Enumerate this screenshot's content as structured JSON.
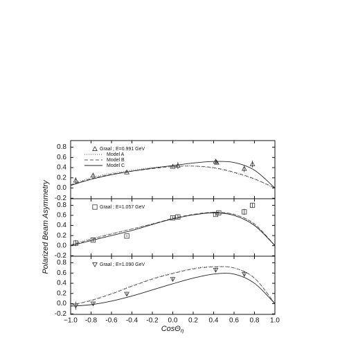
{
  "chart_data": [
    {
      "type": "line",
      "x": [
        -1,
        -0.8,
        -0.6,
        -0.4,
        -0.2,
        0,
        0.2,
        0.4,
        0.6,
        0.8,
        1
      ],
      "series": [
        {
          "name": "Model A",
          "style": "dotted",
          "color": "#555555",
          "values": [
            0.07,
            0.2,
            0.29,
            0.35,
            0.4,
            0.43,
            0.43,
            0.39,
            0.3,
            0.17,
            0
          ]
        },
        {
          "name": "Model B",
          "style": "dashed",
          "color": "#555555",
          "values": [
            0.06,
            0.18,
            0.27,
            0.33,
            0.38,
            0.42,
            0.43,
            0.4,
            0.31,
            0.18,
            0
          ]
        },
        {
          "name": "Model C",
          "style": "solid",
          "color": "#222222",
          "values": [
            0.05,
            0.17,
            0.26,
            0.33,
            0.39,
            0.44,
            0.49,
            0.52,
            0.5,
            0.35,
            0
          ]
        }
      ],
      "points": {
        "name": "Graal ; E=0.991 GeV",
        "marker": "triangle",
        "color": "#333333",
        "x": [
          -0.95,
          -0.78,
          -0.45,
          0.0,
          0.05,
          0.42,
          0.43,
          0.7,
          0.78
        ],
        "values": [
          0.15,
          0.25,
          0.31,
          0.42,
          0.44,
          0.52,
          0.5,
          0.38,
          0.47
        ],
        "errors": [
          0.06,
          0.02,
          0.02,
          0.03,
          0.07,
          0.04,
          0.04,
          0.07,
          0.07
        ]
      },
      "ylim": [
        -0.21,
        0.93
      ],
      "yticks": [
        -0.2,
        {
          "value": 0,
          "label": "0.0"
        },
        0.2,
        0.4,
        0.6,
        0.8
      ]
    },
    {
      "type": "line",
      "y_label": "Polarized Beam Asymmetry",
      "x": [
        -1,
        -0.8,
        -0.6,
        -0.4,
        -0.2,
        0,
        0.2,
        0.4,
        0.6,
        0.8,
        1
      ],
      "series": [
        {
          "style": "dotted",
          "color": "#555555",
          "values": [
            0.02,
            0.14,
            0.24,
            0.33,
            0.43,
            0.53,
            0.61,
            0.66,
            0.62,
            0.42,
            0
          ]
        },
        {
          "style": "dashed",
          "color": "#555555",
          "values": [
            0.01,
            0.12,
            0.23,
            0.33,
            0.43,
            0.54,
            0.62,
            0.66,
            0.62,
            0.43,
            0
          ]
        },
        {
          "style": "solid",
          "color": "#222222",
          "values": [
            0.0,
            0.1,
            0.2,
            0.3,
            0.42,
            0.53,
            0.61,
            0.65,
            0.6,
            0.4,
            0
          ]
        }
      ],
      "points": {
        "name": "Graal ; E=1.057 GeV",
        "marker": "square",
        "color": "#333333",
        "x": [
          -0.95,
          -0.78,
          -0.45,
          0.0,
          0.05,
          0.42,
          0.45,
          0.7,
          0.78
        ],
        "values": [
          0.05,
          0.11,
          0.19,
          0.55,
          0.57,
          0.62,
          0.65,
          0.67,
          0.8
        ],
        "errors": [
          0.06,
          0.03,
          0.02,
          0.03,
          0.05,
          0.03,
          0.03,
          0.06,
          0.05
        ]
      },
      "ylim": [
        -0.21,
        0.93
      ],
      "yticks": [
        -0.2,
        {
          "value": 0,
          "label": "0.0"
        },
        0.2,
        0.4,
        0.6,
        0.8
      ]
    },
    {
      "type": "line",
      "x_label": "CosΘ",
      "x_label_sub": "η",
      "x": [
        -1,
        -0.8,
        -0.6,
        -0.4,
        -0.2,
        0,
        0.2,
        0.4,
        0.6,
        0.8,
        1
      ],
      "series": [
        {
          "style": "dotted",
          "color": "#555555",
          "values": [
            -0.03,
            0.07,
            0.2,
            0.35,
            0.49,
            0.6,
            0.69,
            0.73,
            0.7,
            0.5,
            0
          ]
        },
        {
          "style": "dashed",
          "color": "#555555",
          "values": [
            -0.03,
            0.06,
            0.19,
            0.34,
            0.48,
            0.59,
            0.68,
            0.72,
            0.7,
            0.5,
            0
          ]
        },
        {
          "style": "solid",
          "color": "#222222",
          "values": [
            -0.05,
            -0.02,
            0.05,
            0.15,
            0.27,
            0.39,
            0.5,
            0.58,
            0.58,
            0.4,
            0
          ]
        }
      ],
      "points": {
        "name": "Graal ; E=1.090 GeV",
        "marker": "down-triangle",
        "color": "#333333",
        "x": [
          -0.95,
          -0.78,
          -0.45,
          0.0,
          0.42,
          0.7
        ],
        "values": [
          -0.04,
          0.0,
          0.19,
          0.48,
          0.66,
          0.58
        ],
        "errors": [
          0.08,
          0.04,
          0.04,
          0.03,
          0.03,
          0.06
        ]
      },
      "ylim": [
        -0.21,
        0.93
      ],
      "yticks": [
        -0.2,
        {
          "value": 0,
          "label": "0.0"
        },
        0.2,
        0.4,
        0.6,
        0.8
      ],
      "xlim": [
        -1,
        1
      ],
      "xticks": [
        {
          "value": -1,
          "label": "−1.0"
        },
        -0.8,
        -0.6,
        -0.4,
        -0.2,
        {
          "value": 0,
          "label": "0.0"
        },
        0.2,
        0.4,
        0.6,
        0.8,
        {
          "value": 1,
          "label": "1.0"
        }
      ]
    }
  ]
}
